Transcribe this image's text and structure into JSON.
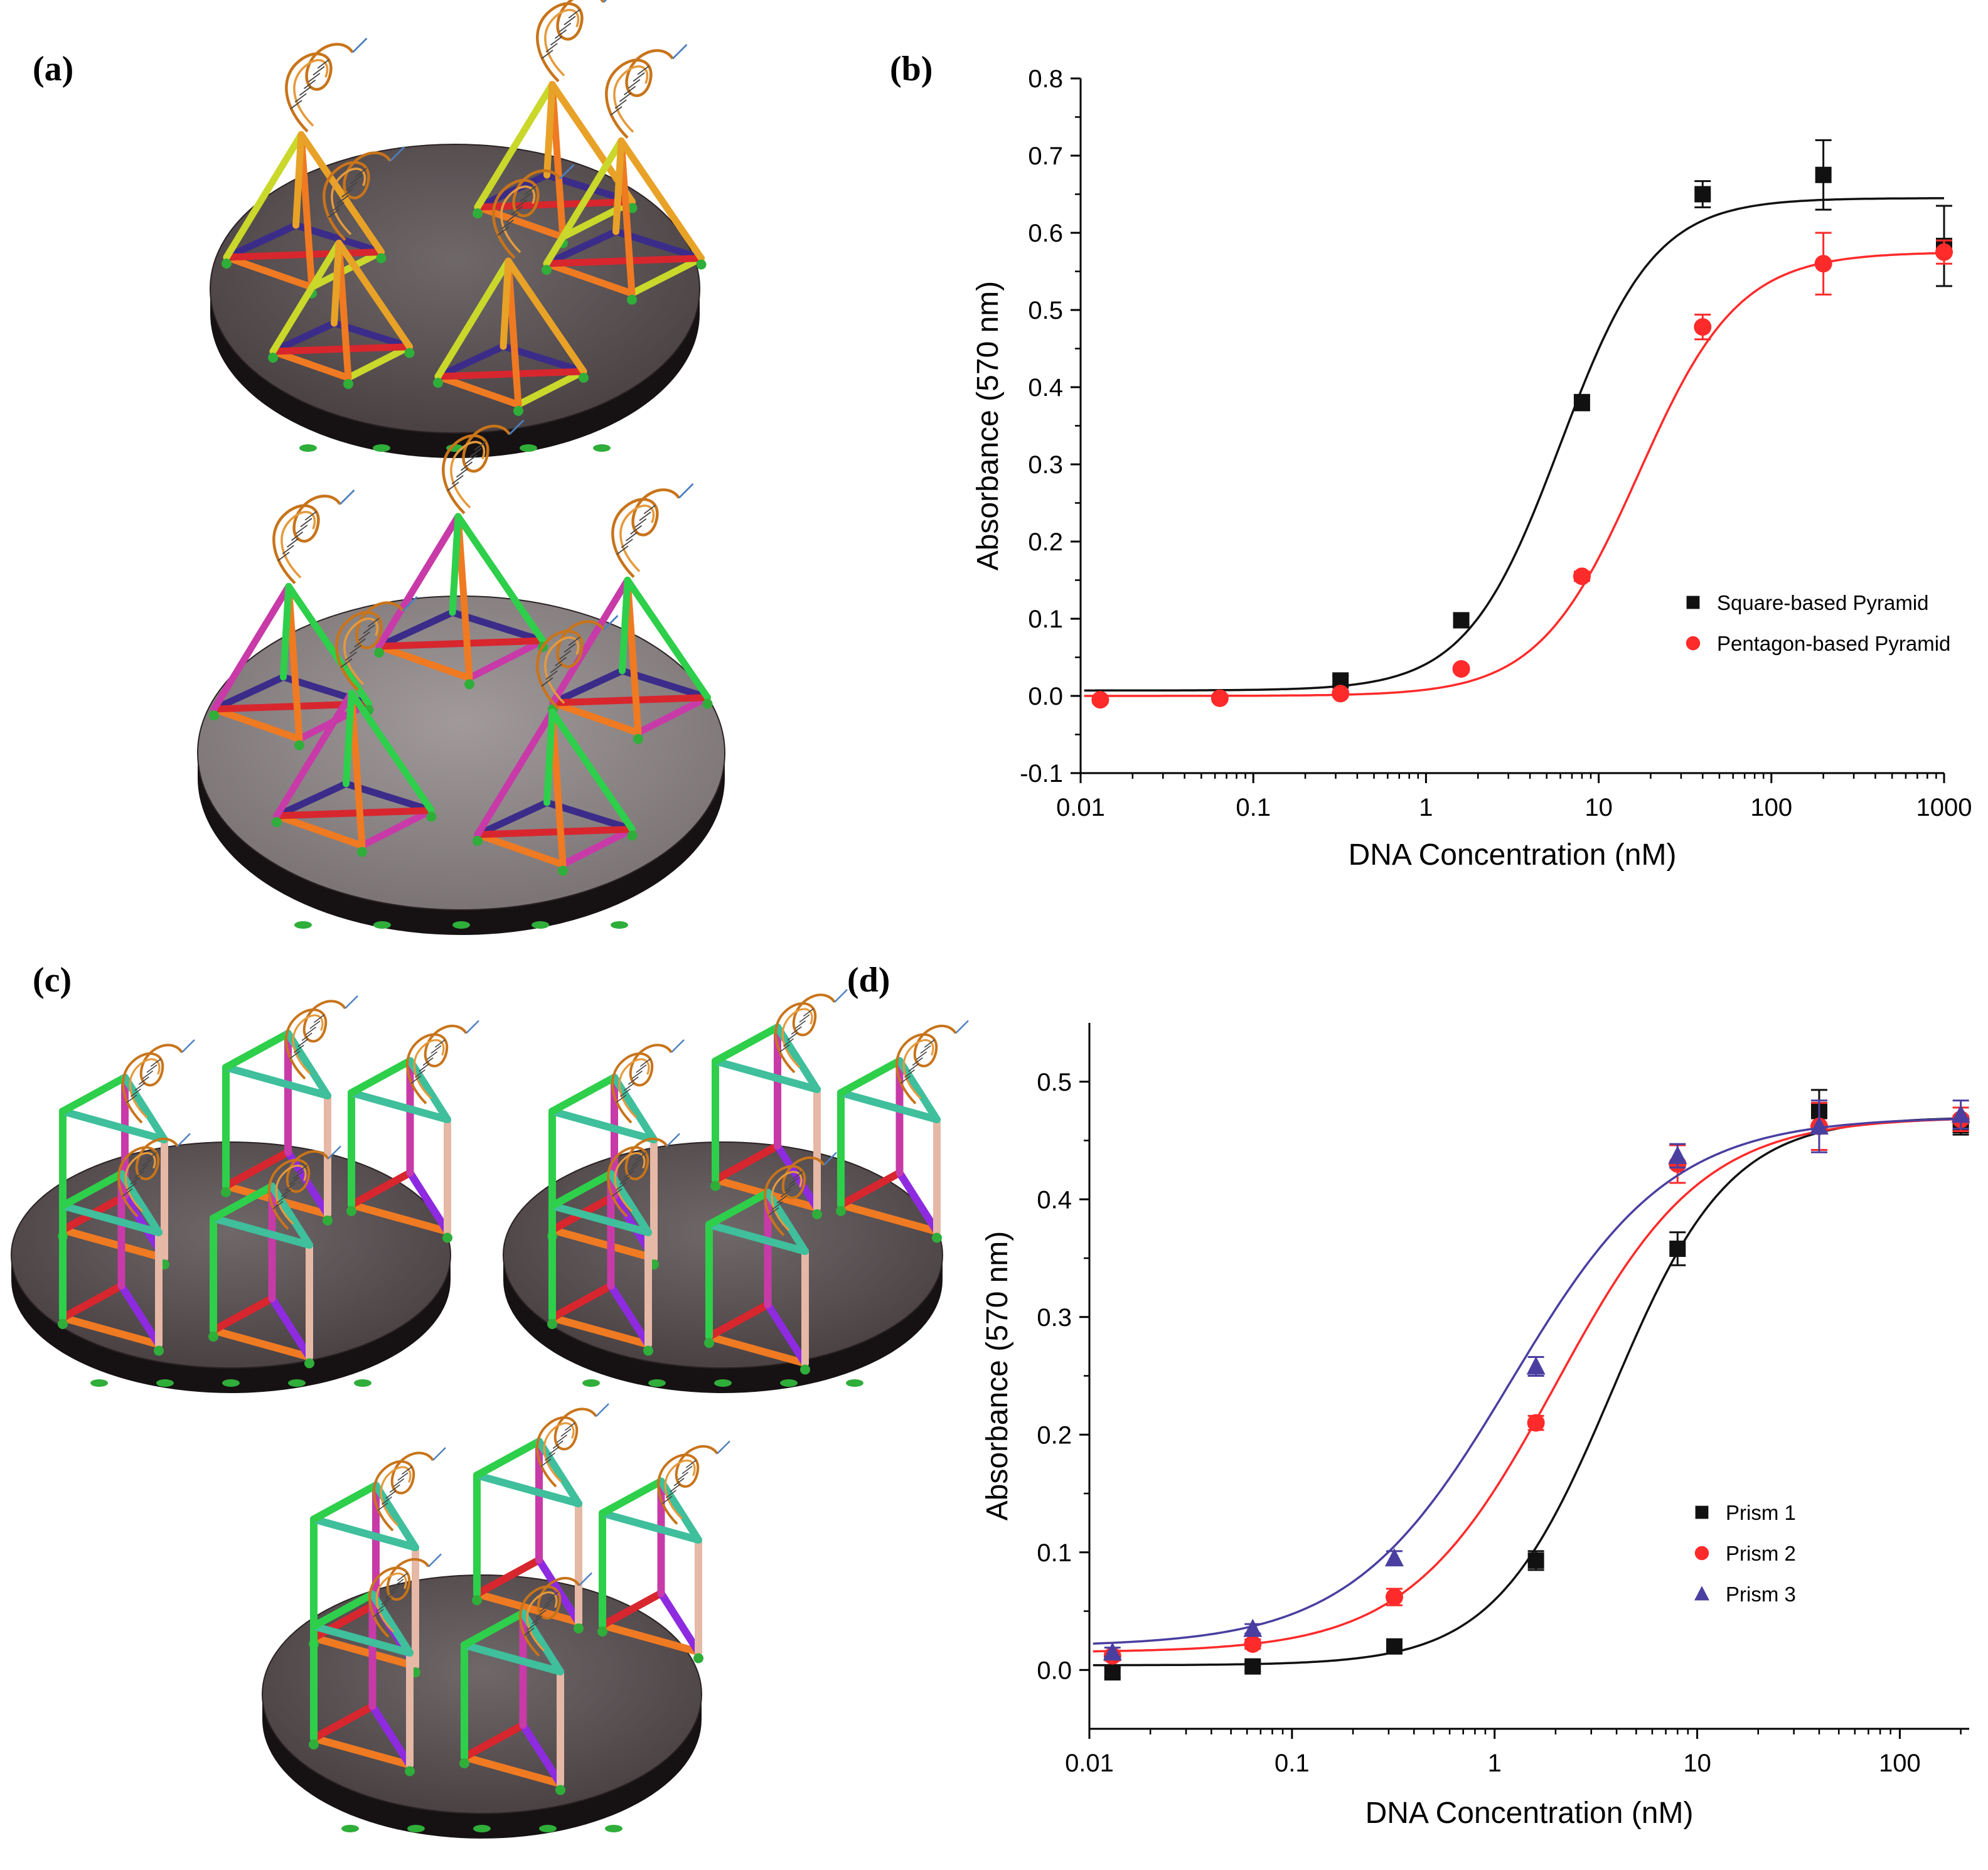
{
  "panels": {
    "a": "(a)",
    "b": "(b)",
    "c": "(c)",
    "d": "(d)"
  },
  "colors": {
    "square": "#111111",
    "pentagon": "#ff2a2a",
    "prism1": "#111111",
    "prism2": "#ff2a2a",
    "prism3": "#4a3fa0",
    "surface": "#4a4143",
    "surface_light": "#6f6869",
    "surface_edge": "#161213"
  },
  "chart_data": [
    {
      "type": "scatter",
      "panel": "b",
      "xlabel": "DNA Concentration (nM)",
      "ylabel": "Absorbance (570 nm)",
      "xscale": "log",
      "xlim": [
        0.01,
        1000
      ],
      "ylim": [
        -0.1,
        0.8
      ],
      "xticks": [
        {
          "v": 0.01,
          "label": "0.01"
        },
        {
          "v": 0.1,
          "label": "0.1"
        },
        {
          "v": 1,
          "label": "1"
        },
        {
          "v": 10,
          "label": "10"
        },
        {
          "v": 100,
          "label": "100"
        },
        {
          "v": 1000,
          "label": "1000"
        }
      ],
      "yticks": [
        {
          "v": -0.1,
          "label": "-0.1"
        },
        {
          "v": 0.0,
          "label": "0.0"
        },
        {
          "v": 0.1,
          "label": "0.1"
        },
        {
          "v": 0.2,
          "label": "0.2"
        },
        {
          "v": 0.3,
          "label": "0.3"
        },
        {
          "v": 0.4,
          "label": "0.4"
        },
        {
          "v": 0.5,
          "label": "0.5"
        },
        {
          "v": 0.6,
          "label": "0.6"
        },
        {
          "v": 0.7,
          "label": "0.7"
        },
        {
          "v": 0.8,
          "label": "0.8"
        }
      ],
      "legend_position": "right",
      "series": [
        {
          "name": "Square-based Pyramid",
          "marker": "square",
          "colorKey": "square",
          "points": [
            {
              "x": 0.32,
              "y": 0.02,
              "err": 0.006
            },
            {
              "x": 1.6,
              "y": 0.098,
              "err": 0.006
            },
            {
              "x": 8,
              "y": 0.38,
              "err": 0.01
            },
            {
              "x": 40,
              "y": 0.65,
              "err": 0.017
            },
            {
              "x": 200,
              "y": 0.675,
              "err": 0.045
            },
            {
              "x": 1000,
              "y": 0.583,
              "err": 0.052
            }
          ],
          "fit": {
            "bottom": 0.007,
            "top": 0.645,
            "ec50": 6.0,
            "hill": 1.6
          }
        },
        {
          "name": "Pentagon-based Pyramid",
          "marker": "circle",
          "colorKey": "pentagon",
          "points": [
            {
              "x": 0.013,
              "y": -0.005,
              "err": 0.004
            },
            {
              "x": 0.064,
              "y": -0.003,
              "err": 0.004
            },
            {
              "x": 0.32,
              "y": 0.003,
              "err": 0.004
            },
            {
              "x": 1.6,
              "y": 0.035,
              "err": 0.004
            },
            {
              "x": 8,
              "y": 0.155,
              "err": 0.006
            },
            {
              "x": 40,
              "y": 0.478,
              "err": 0.016
            },
            {
              "x": 200,
              "y": 0.56,
              "err": 0.04
            },
            {
              "x": 1000,
              "y": 0.575,
              "err": 0.015
            }
          ],
          "fit": {
            "bottom": 0.0,
            "top": 0.575,
            "ec50": 17.0,
            "hill": 1.5
          }
        }
      ]
    },
    {
      "type": "scatter",
      "panel": "d",
      "xlabel": "DNA Concentration (nM)",
      "ylabel": "Absorbance (570 nm)",
      "xscale": "log",
      "xlim": [
        0.01,
        220
      ],
      "ylim": [
        -0.05,
        0.55
      ],
      "xticks": [
        {
          "v": 0.01,
          "label": "0.01"
        },
        {
          "v": 0.1,
          "label": "0.1"
        },
        {
          "v": 1,
          "label": "1"
        },
        {
          "v": 10,
          "label": "10"
        },
        {
          "v": 100,
          "label": "100"
        }
      ],
      "yticks": [
        {
          "v": 0.0,
          "label": "0.0"
        },
        {
          "v": 0.1,
          "label": "0.1"
        },
        {
          "v": 0.2,
          "label": "0.2"
        },
        {
          "v": 0.3,
          "label": "0.3"
        },
        {
          "v": 0.4,
          "label": "0.4"
        },
        {
          "v": 0.5,
          "label": "0.5"
        }
      ],
      "legend_position": "right",
      "series": [
        {
          "name": "Prism 1",
          "marker": "square",
          "colorKey": "prism1",
          "points": [
            {
              "x": 0.013,
              "y": -0.002,
              "err": 0.004
            },
            {
              "x": 0.064,
              "y": 0.003,
              "err": 0.004
            },
            {
              "x": 0.32,
              "y": 0.02,
              "err": 0.004
            },
            {
              "x": 1.6,
              "y": 0.093,
              "err": 0.008
            },
            {
              "x": 8,
              "y": 0.358,
              "err": 0.014
            },
            {
              "x": 40,
              "y": 0.475,
              "err": 0.018
            },
            {
              "x": 200,
              "y": 0.463,
              "err": 0.008
            }
          ],
          "fit": {
            "bottom": 0.004,
            "top": 0.47,
            "ec50": 3.8,
            "hill": 1.5
          }
        },
        {
          "name": "Prism 2",
          "marker": "circle",
          "colorKey": "prism2",
          "points": [
            {
              "x": 0.013,
              "y": 0.012,
              "err": 0.004
            },
            {
              "x": 0.064,
              "y": 0.022,
              "err": 0.004
            },
            {
              "x": 0.32,
              "y": 0.062,
              "err": 0.007
            },
            {
              "x": 1.6,
              "y": 0.21,
              "err": 0.006
            },
            {
              "x": 8,
              "y": 0.43,
              "err": 0.016
            },
            {
              "x": 40,
              "y": 0.462,
              "err": 0.02
            },
            {
              "x": 200,
              "y": 0.468,
              "err": 0.01
            }
          ],
          "fit": {
            "bottom": 0.015,
            "top": 0.47,
            "ec50": 2.0,
            "hill": 1.2
          }
        },
        {
          "name": "Prism 3",
          "marker": "triangle",
          "colorKey": "prism3",
          "points": [
            {
              "x": 0.013,
              "y": 0.015,
              "err": 0.004
            },
            {
              "x": 0.064,
              "y": 0.035,
              "err": 0.004
            },
            {
              "x": 0.32,
              "y": 0.095,
              "err": 0.006
            },
            {
              "x": 1.6,
              "y": 0.258,
              "err": 0.008
            },
            {
              "x": 8,
              "y": 0.437,
              "err": 0.01
            },
            {
              "x": 40,
              "y": 0.462,
              "err": 0.022
            },
            {
              "x": 200,
              "y": 0.472,
              "err": 0.012
            }
          ],
          "fit": {
            "bottom": 0.02,
            "top": 0.47,
            "ec50": 1.2,
            "hill": 1.1
          }
        }
      ]
    }
  ]
}
